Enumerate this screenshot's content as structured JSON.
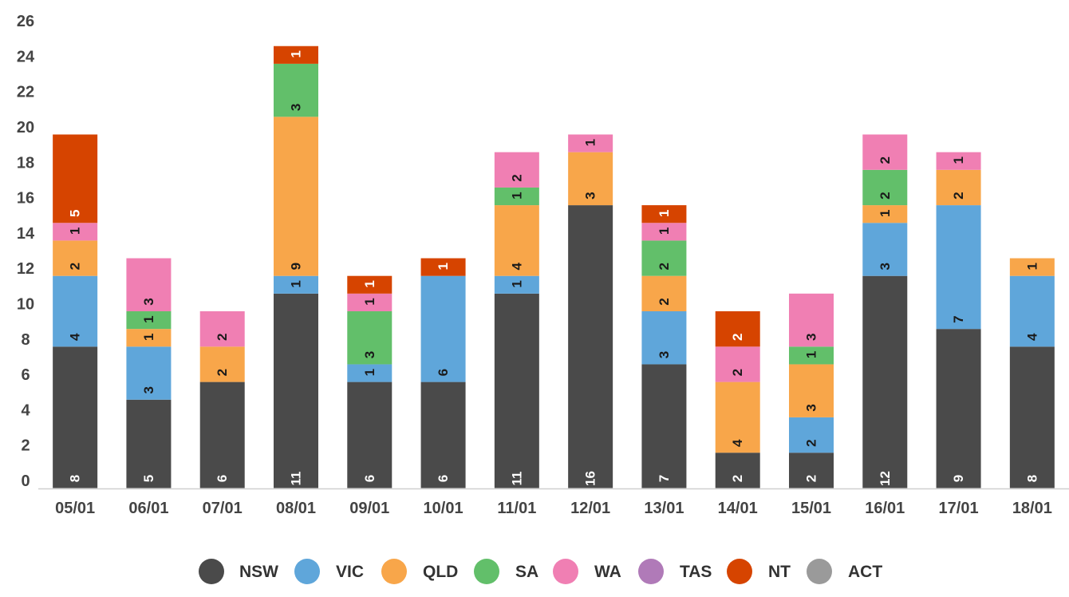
{
  "chart_data": {
    "type": "bar",
    "stacked": true,
    "ylim": [
      0,
      26
    ],
    "yticks": [
      0,
      2,
      4,
      6,
      8,
      10,
      12,
      14,
      16,
      18,
      20,
      22,
      24,
      26
    ],
    "grid": false,
    "legend_position": "bottom",
    "categories": [
      "05/01",
      "06/01",
      "07/01",
      "08/01",
      "09/01",
      "10/01",
      "11/01",
      "12/01",
      "13/01",
      "14/01",
      "15/01",
      "16/01",
      "17/01",
      "18/01"
    ],
    "series": [
      {
        "name": "NSW",
        "color": "#4a4a4a",
        "label_color": "#ffffff",
        "values": [
          8,
          5,
          6,
          11,
          6,
          6,
          11,
          16,
          7,
          2,
          2,
          12,
          9,
          8
        ]
      },
      {
        "name": "VIC",
        "color": "#5fa6da",
        "label_color": "#1a1a1a",
        "values": [
          4,
          3,
          0,
          1,
          1,
          6,
          1,
          0,
          3,
          0,
          2,
          3,
          7,
          4
        ]
      },
      {
        "name": "QLD",
        "color": "#f8a64a",
        "label_color": "#1a1a1a",
        "values": [
          2,
          1,
          2,
          9,
          0,
          0,
          4,
          3,
          2,
          4,
          3,
          1,
          2,
          1
        ]
      },
      {
        "name": "SA",
        "color": "#62bf6a",
        "label_color": "#1a1a1a",
        "values": [
          0,
          1,
          0,
          3,
          3,
          0,
          1,
          0,
          2,
          0,
          1,
          2,
          0,
          0
        ]
      },
      {
        "name": "WA",
        "color": "#f07fb3",
        "label_color": "#1a1a1a",
        "values": [
          1,
          3,
          2,
          0,
          1,
          0,
          2,
          1,
          1,
          2,
          3,
          2,
          1,
          0
        ]
      },
      {
        "name": "TAS",
        "color": "#b07ab8",
        "label_color": "#1a1a1a",
        "values": [
          0,
          0,
          0,
          0,
          0,
          0,
          0,
          0,
          0,
          0,
          0,
          0,
          0,
          0
        ]
      },
      {
        "name": "NT",
        "color": "#d64400",
        "label_color": "#ffffff",
        "values": [
          5,
          0,
          0,
          1,
          1,
          1,
          0,
          0,
          1,
          2,
          0,
          0,
          0,
          0
        ]
      },
      {
        "name": "ACT",
        "color": "#9a9a9a",
        "label_color": "#1a1a1a",
        "values": [
          0,
          0,
          0,
          0,
          0,
          0,
          0,
          0,
          0,
          0,
          0,
          0,
          0,
          0
        ]
      }
    ]
  }
}
